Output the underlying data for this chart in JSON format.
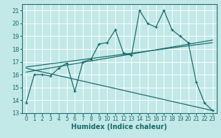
{
  "xlabel": "Humidex (Indice chaleur)",
  "bg_color": "#c2e8e8",
  "grid_color": "#ffffff",
  "line_color": "#1a6b6b",
  "xlim": [
    -0.5,
    23.5
  ],
  "ylim": [
    13,
    21.5
  ],
  "xticks": [
    0,
    1,
    2,
    3,
    4,
    5,
    6,
    7,
    8,
    9,
    10,
    11,
    12,
    13,
    14,
    15,
    16,
    17,
    18,
    19,
    20,
    21,
    22,
    23
  ],
  "yticks": [
    13,
    14,
    15,
    16,
    17,
    18,
    19,
    20,
    21
  ],
  "main_series_x": [
    0,
    1,
    2,
    3,
    4,
    5,
    6,
    7,
    8,
    9,
    10,
    11,
    12,
    13,
    14,
    15,
    16,
    17,
    18,
    19,
    20,
    21,
    22,
    23
  ],
  "main_series_y": [
    13.8,
    16.0,
    16.0,
    15.9,
    16.5,
    16.9,
    14.7,
    17.0,
    17.2,
    18.4,
    18.5,
    19.5,
    17.7,
    17.5,
    21.0,
    20.0,
    19.7,
    21.0,
    19.5,
    19.0,
    18.5,
    15.4,
    13.8,
    13.2
  ],
  "trend1_x": [
    0,
    23
  ],
  "trend1_y": [
    16.2,
    18.7
  ],
  "trend2_x": [
    0,
    23
  ],
  "trend2_y": [
    16.6,
    18.5
  ],
  "trend3_x": [
    0,
    23
  ],
  "trend3_y": [
    16.5,
    13.2
  ]
}
